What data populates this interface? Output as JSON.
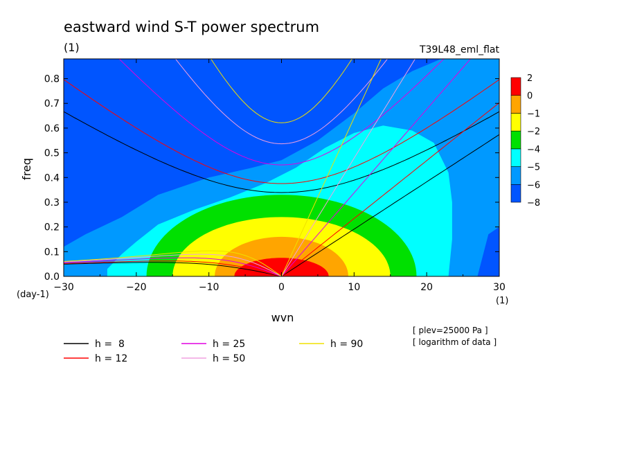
{
  "chart_data": {
    "type": "heatmap",
    "title": "eastward wind S-T power spectrum",
    "subtitle": "(1)",
    "run_label": "T39L48_eml_flat",
    "xlabel": "wvn",
    "ylabel": "freq",
    "xunit": "(1)",
    "yunit": "(day-1)",
    "xlim": [
      -30,
      30
    ],
    "ylim": [
      0,
      0.88
    ],
    "xticks": [
      "−30",
      "−20",
      "−10",
      "0",
      "10",
      "20",
      "30"
    ],
    "xtick_values": [
      -30,
      -20,
      -10,
      0,
      10,
      20,
      30
    ],
    "yticks": [
      "0.0",
      "0.1",
      "0.2",
      "0.3",
      "0.4",
      "0.5",
      "0.6",
      "0.7",
      "0.8"
    ],
    "ytick_values": [
      0,
      0.1,
      0.2,
      0.3,
      0.4,
      0.5,
      0.6,
      0.7,
      0.8
    ],
    "colorbar": {
      "labels": [
        "2",
        "0",
        "−1",
        "−2",
        "−4",
        "−5",
        "−6",
        "−8"
      ],
      "colors": [
        "#0055ff",
        "#0099ff",
        "#00ffff",
        "#00e000",
        "#ffff00",
        "#ffa500",
        "#ff0000"
      ]
    },
    "contours": [
      {
        "level": 0,
        "color": "#ff0000",
        "rx": 6.5,
        "ry": 0.075,
        "flat": 1.0
      },
      {
        "level": -1,
        "color": "#ffa500",
        "rx": 9.2,
        "ry": 0.16,
        "flat": 1.0
      },
      {
        "level": -2,
        "color": "#ffff00",
        "rx": 15.0,
        "ry": 0.24,
        "flat": 1.0
      },
      {
        "level": -4,
        "color": "#00e000",
        "rx": 18.6,
        "ry": 0.33,
        "flat": 1.0
      }
    ],
    "dispersion_curves": [
      {
        "name": "h =  8",
        "equivalent_depth": 8,
        "color": "#000000"
      },
      {
        "name": "h = 12",
        "equivalent_depth": 12,
        "color": "#ff0000"
      },
      {
        "name": "h = 25",
        "equivalent_depth": 25,
        "color": "#e000e0"
      },
      {
        "name": "h = 50",
        "equivalent_depth": 50,
        "color": "#f0a0e0"
      },
      {
        "name": "h = 90",
        "equivalent_depth": 90,
        "color": "#f0e000"
      }
    ],
    "notes": [
      "[ plev=25000 Pa ]",
      "[ logarithm of data ]"
    ]
  }
}
